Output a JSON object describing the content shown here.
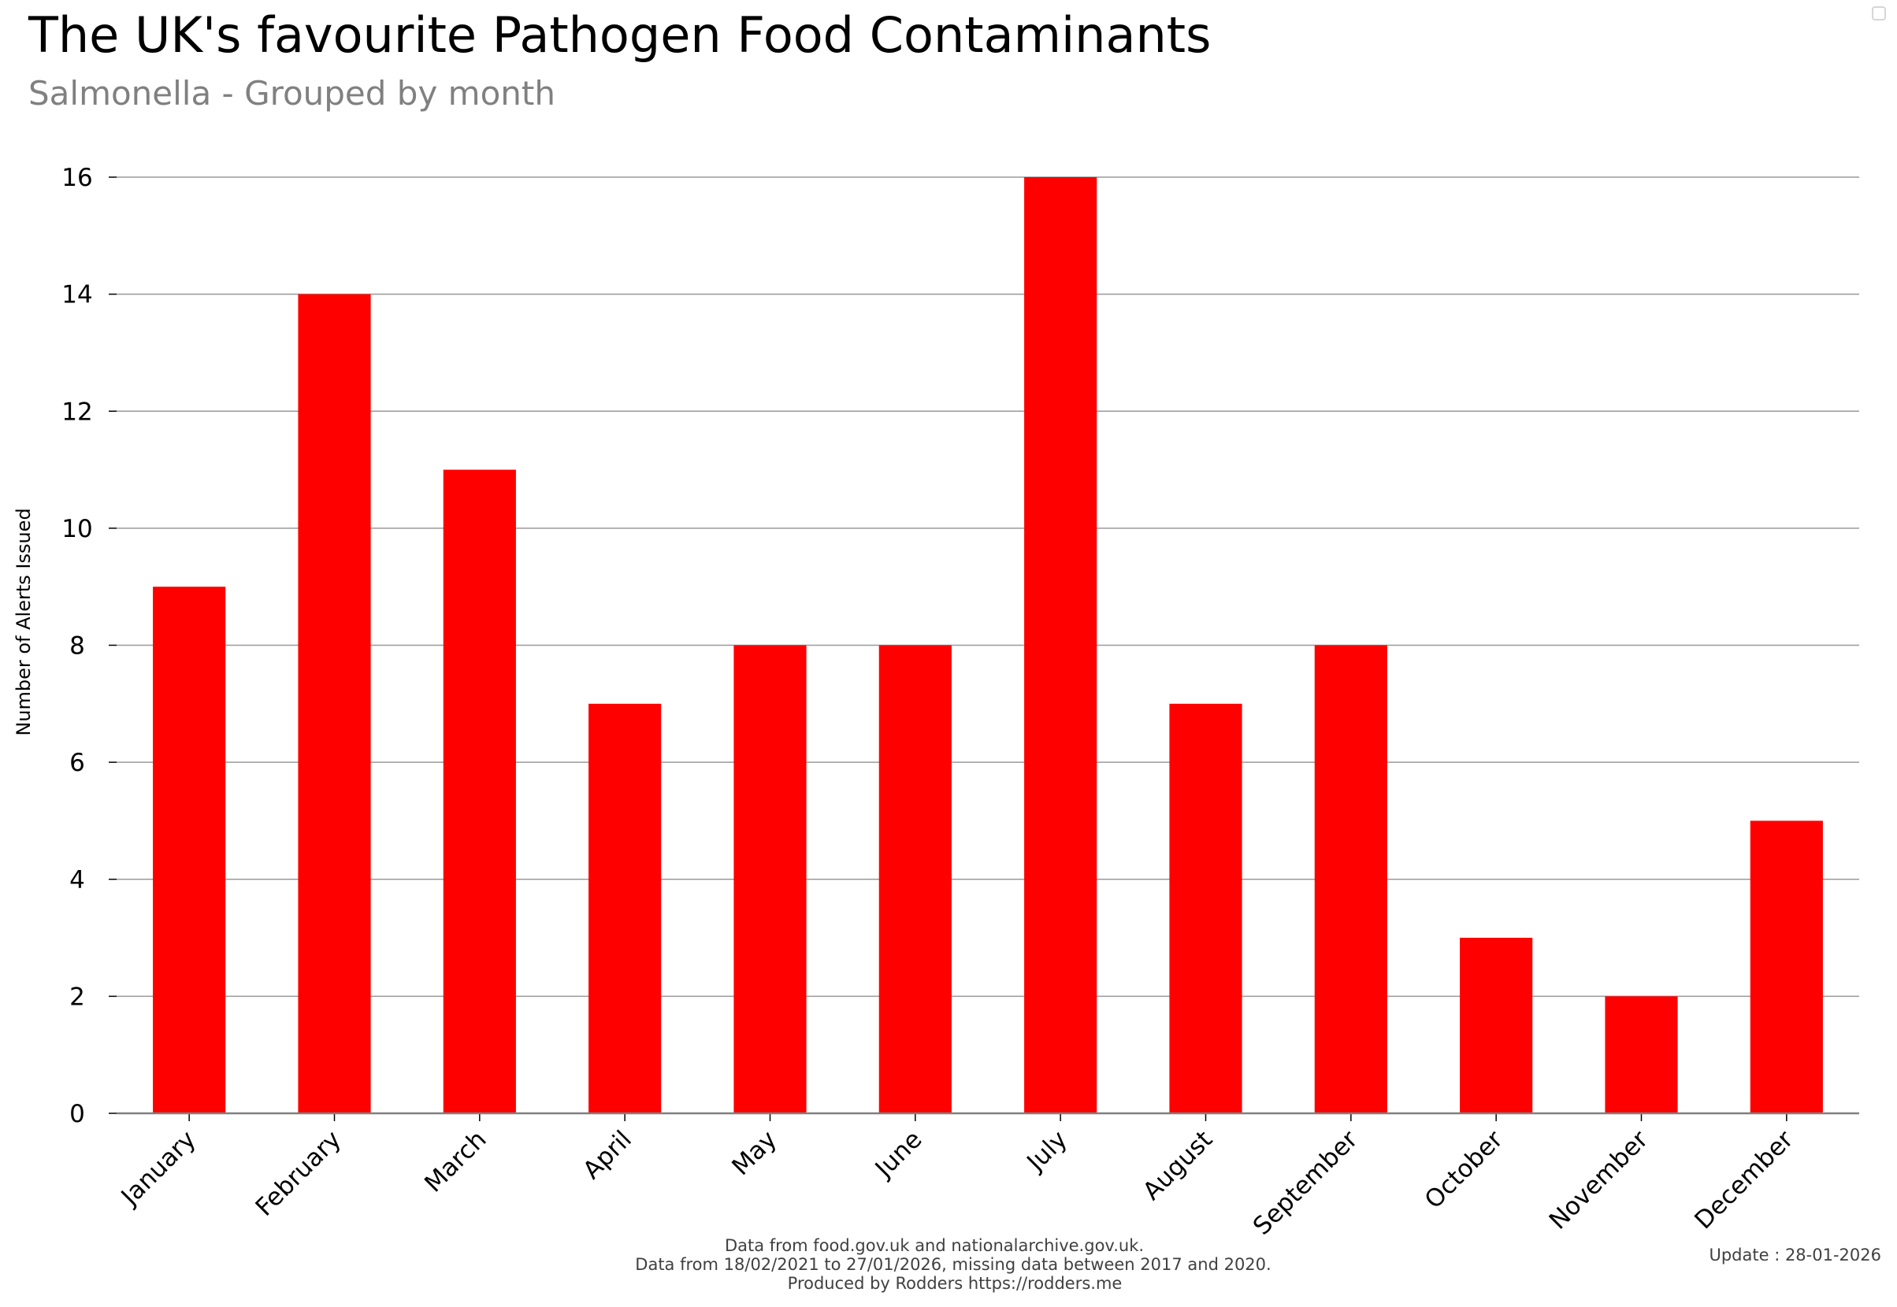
{
  "chart_data": {
    "type": "bar",
    "title": "The UK's favourite Pathogen Food Contaminants",
    "subtitle": "Salmonella - Grouped by month",
    "xlabel": "",
    "ylabel": "Number of Alerts Issued",
    "categories": [
      "January",
      "February",
      "March",
      "April",
      "May",
      "June",
      "July",
      "August",
      "September",
      "October",
      "November",
      "December"
    ],
    "values": [
      9,
      14,
      11,
      7,
      8,
      8,
      16,
      7,
      8,
      3,
      2,
      5
    ],
    "ylim": [
      0,
      16
    ],
    "yticks": [
      0,
      2,
      4,
      6,
      8,
      10,
      12,
      14,
      16
    ],
    "grid": true,
    "legend": "none",
    "bar_color": "#ff0000",
    "grid_color": "#999999",
    "axis_color": "#7f7f7f"
  },
  "footer": {
    "line1": "Data from food.gov.uk and nationalarchive.gov.uk.",
    "line2": "Data from 18/02/2021 to 27/01/2026, missing data between 2017 and 2020.",
    "line3": "Produced by Rodders https://rodders.me",
    "update": "Update : 28-01-2026"
  }
}
